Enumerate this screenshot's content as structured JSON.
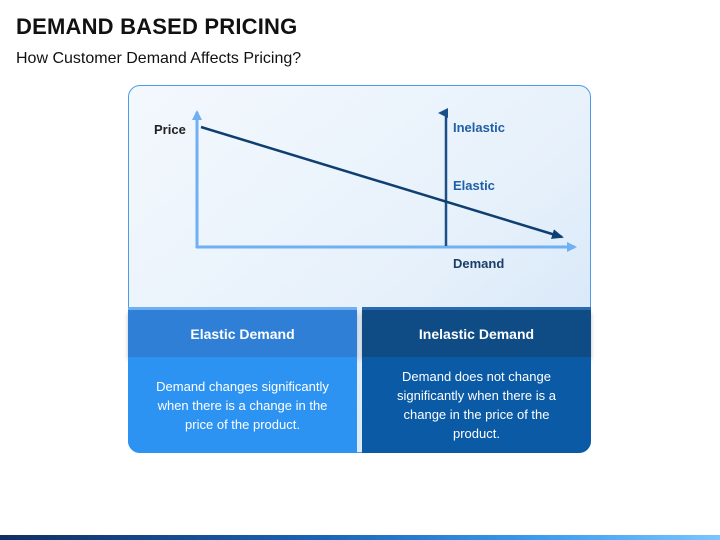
{
  "header": {
    "title": "DEMAND BASED PRICING",
    "subtitle": "How Customer Demand Affects Pricing?"
  },
  "graph": {
    "y_axis_label": "Price",
    "x_axis_label": "Demand",
    "vertical_line_top_label": "Inelastic",
    "intersection_label": "Elastic"
  },
  "cards": [
    {
      "title": "Elastic Demand",
      "description": "Demand changes significantly when there is a change in the price of the product."
    },
    {
      "title": "Inelastic Demand",
      "description": "Demand does not change significantly when there is a change in the price of the product."
    }
  ],
  "colors": {
    "elastic_header": "#2f7fd6",
    "elastic_body": "#2d93f2",
    "inelastic_header": "#0f4c86",
    "inelastic_body": "#0a5aa6",
    "axis": "#6fb0f2",
    "demand_line": "#0f3f70",
    "inelastic_line": "#1a4f8a"
  }
}
